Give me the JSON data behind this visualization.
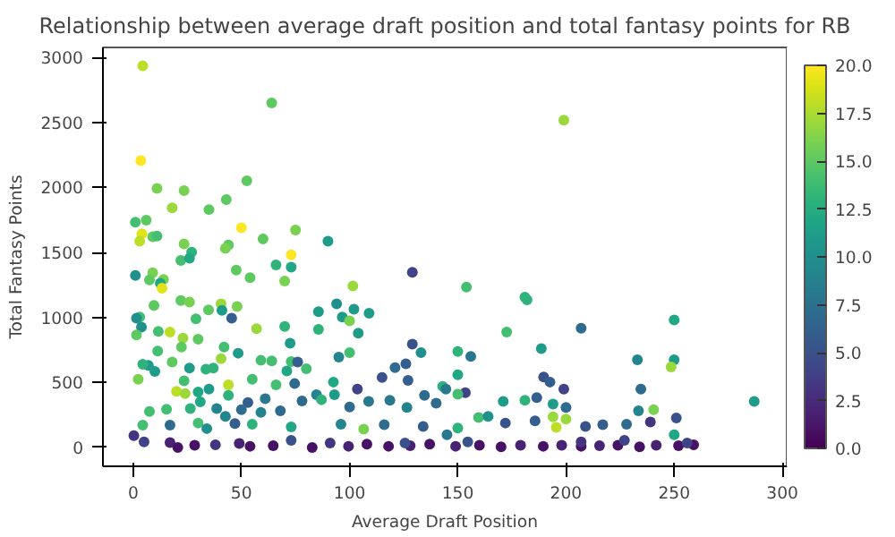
{
  "chart_data": {
    "type": "scatter",
    "title": "Relationship between average draft position and total fantasy points for RB",
    "xlabel": "Average Draft Position",
    "ylabel": "Total Fantasy Points",
    "grid": false,
    "marker": "circle",
    "xlim": [
      -14,
      302
    ],
    "ylim": [
      -145,
      3077
    ],
    "xticks": [
      0,
      50,
      100,
      150,
      200,
      250,
      300
    ],
    "yticks": [
      0,
      500,
      1000,
      1500,
      2000,
      2500,
      3000
    ],
    "clim": [
      0,
      20
    ],
    "cticks": [
      {
        "value": 0,
        "label": "0.0"
      },
      {
        "value": 2.5,
        "label": "2.5"
      },
      {
        "value": 5,
        "label": "5.0"
      },
      {
        "value": 7.5,
        "label": "7.5"
      },
      {
        "value": 10,
        "label": "10.0"
      },
      {
        "value": 12.5,
        "label": "12.5"
      },
      {
        "value": 15,
        "label": "15.0"
      },
      {
        "value": 17.5,
        "label": "17.5"
      },
      {
        "value": 20,
        "label": "20.0"
      }
    ],
    "x": [
      4.4,
      64,
      199,
      3.5,
      52.5,
      11,
      23.5,
      43,
      18,
      35,
      1,
      6,
      50,
      75,
      4,
      3,
      9,
      11,
      60,
      90,
      23.5,
      44,
      42.6,
      27,
      73,
      22,
      26,
      66,
      73,
      47.6,
      9,
      54,
      1,
      129,
      14,
      7.5,
      70,
      12.5,
      13.3,
      101.5,
      154,
      181,
      182,
      22,
      26,
      40.6,
      94,
      109,
      9.6,
      48,
      102,
      34.8,
      41,
      3,
      1.5,
      29,
      45.5,
      96.6,
      100,
      85.6,
      250,
      3.8,
      207,
      1.5,
      17,
      11.6,
      57,
      70,
      85.6,
      104,
      172.6,
      23,
      30,
      22.3,
      42,
      72.5,
      129,
      188.6,
      48.5,
      11.3,
      133,
      150,
      18,
      40.6,
      59,
      64,
      73,
      76,
      233,
      250,
      248.6,
      7,
      4.4,
      10,
      26,
      33.6,
      37,
      71,
      80,
      95,
      100,
      156,
      121,
      126,
      115,
      150,
      189.7,
      192.6,
      199,
      2.3,
      23.5,
      44,
      55,
      66,
      74.6,
      92.5,
      103.6,
      127,
      143,
      144.5,
      153.5,
      234.6,
      20,
      24,
      30,
      35,
      44,
      53,
      61,
      78,
      84.7,
      87,
      93,
      108.8,
      118.6,
      134.6,
      140,
      150,
      171,
      181,
      186.5,
      194,
      200,
      287,
      7.5,
      15.4,
      26.4,
      31,
      38.6,
      50,
      59,
      68,
      100,
      126.5,
      159.6,
      164,
      194,
      200,
      233.5,
      240.5,
      251,
      4.4,
      17,
      30,
      42.6,
      34,
      47,
      55,
      73,
      96,
      106.5,
      116,
      134,
      145,
      150,
      172,
      185.7,
      195.5,
      209,
      217,
      228,
      239,
      250,
      0.3,
      5,
      17,
      20.6,
      28.4,
      38,
      49,
      54,
      64.7,
      82.7,
      91,
      99.5,
      108,
      118,
      128,
      137,
      149,
      160,
      170,
      179,
      189.5,
      198,
      207,
      215.5,
      224,
      234,
      241.7,
      252,
      259,
      256,
      154.6,
      125.6,
      73,
      207,
      227
    ],
    "values": [
      2936,
      2650,
      2517,
      2206,
      2052,
      1993,
      1976,
      1907,
      1843,
      1830,
      1732,
      1749,
      1690,
      1673,
      1643,
      1587,
      1621,
      1626,
      1604,
      1587,
      1566,
      1557,
      1532,
      1502,
      1481,
      1438,
      1455,
      1404,
      1387,
      1365,
      1344,
      1306,
      1323,
      1348,
      1293,
      1289,
      1280,
      1263,
      1225,
      1242,
      1233,
      1156,
      1135,
      1131,
      1118,
      1105,
      1105,
      1033,
      1092,
      1084,
      1063,
      1058,
      1054,
      1003,
      994,
      990,
      994,
      1003,
      973,
      1045,
      981,
      926,
      917,
      866,
      887,
      892,
      913,
      930,
      909,
      879,
      887,
      841,
      832,
      772,
      772,
      802,
      794,
      760,
      725,
      742,
      730,
      738,
      657,
      683,
      670,
      666,
      661,
      657,
      674,
      674,
      619,
      632,
      640,
      585,
      610,
      602,
      610,
      589,
      606,
      695,
      730,
      700,
      614,
      644,
      538,
      559,
      542,
      503,
      448,
      525,
      512,
      482,
      525,
      482,
      491,
      503,
      448,
      516,
      469,
      448,
      422,
      448,
      431,
      414,
      427,
      448,
      401,
      346,
      375,
      358,
      405,
      367,
      405,
      354,
      363,
      401,
      341,
      410,
      354,
      363,
      384,
      333,
      307,
      354,
      277,
      294,
      299,
      350,
      299,
      290,
      269,
      282,
      311,
      307,
      230,
      239,
      235,
      218,
      282,
      290,
      226,
      171,
      171,
      188,
      239,
      145,
      183,
      179,
      158,
      179,
      141,
      175,
      162,
      98,
      149,
      188,
      205,
      154,
      162,
      175,
      179,
      196,
      98,
      90,
      43,
      38,
      0,
      17,
      21,
      30,
      9,
      13,
      0,
      34,
      9,
      26,
      9,
      13,
      26,
      9,
      17,
      4,
      17,
      9,
      17,
      9,
      13,
      17,
      4,
      17,
      13,
      21,
      34,
      43,
      34,
      55,
      43,
      55
    ],
    "cvalues": [
      18,
      15,
      17,
      20,
      15,
      16,
      16,
      15,
      17,
      15,
      14,
      15,
      20,
      16,
      19,
      18,
      15,
      14,
      15,
      11,
      16,
      15,
      16,
      13,
      20,
      14,
      12,
      13,
      12,
      15,
      16,
      15,
      10,
      4,
      16,
      15,
      16,
      12,
      19,
      17,
      14,
      13,
      13,
      15,
      16,
      17,
      10,
      11,
      15,
      16,
      11,
      15,
      11,
      14,
      10,
      14,
      6,
      11,
      16,
      11,
      12,
      10,
      7,
      15,
      18,
      14,
      17,
      13,
      13,
      11,
      14,
      17,
      15,
      15,
      14,
      11,
      5,
      11,
      11,
      14,
      10,
      13,
      15,
      17,
      14,
      14,
      14,
      6,
      9,
      11,
      17,
      11,
      13,
      11,
      11,
      13,
      13,
      12,
      14,
      9,
      14,
      8,
      7,
      6,
      5,
      12,
      5,
      6,
      4,
      16,
      14,
      18,
      14,
      14,
      7,
      12,
      4,
      6,
      13,
      8,
      4,
      7,
      18,
      17,
      12,
      11,
      13,
      6,
      8,
      7,
      9,
      13,
      11,
      8,
      8,
      7,
      7,
      14,
      11,
      13,
      6,
      11,
      7,
      11,
      14,
      14,
      13,
      12,
      9,
      7,
      9,
      7,
      7,
      9,
      14,
      10,
      17,
      17,
      9,
      16,
      5,
      14,
      7,
      14,
      9,
      10,
      6,
      13,
      12,
      9,
      16,
      7,
      6,
      8,
      13,
      5,
      6,
      18,
      5,
      6,
      7,
      3,
      12,
      3,
      4,
      2,
      1,
      1,
      3,
      2,
      1,
      1,
      1,
      3,
      2,
      1,
      1,
      2,
      1,
      2,
      1,
      1,
      2,
      1,
      2,
      1,
      2,
      1,
      1,
      2,
      1,
      1,
      4,
      5,
      5,
      5,
      3,
      4
    ]
  }
}
